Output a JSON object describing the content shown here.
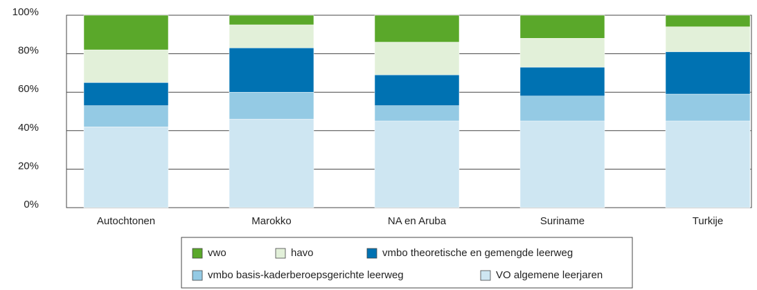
{
  "chart_data": {
    "type": "stacked_bar",
    "categories": [
      "Autochtonen",
      "Marokko",
      "NA en Aruba",
      "Suriname",
      "Turkije"
    ],
    "series": [
      {
        "name": "vwo",
        "color": "#5aa82a",
        "values": [
          18,
          5,
          14,
          12,
          6
        ]
      },
      {
        "name": "havo",
        "color": "#e2f0d9",
        "values": [
          17,
          12,
          17,
          15,
          13
        ]
      },
      {
        "name": "vmbo theoretische en gemengde  leerweg",
        "color": "#0072b2",
        "values": [
          12,
          23,
          16,
          15,
          22
        ]
      },
      {
        "name": "vmbo basis-kaderberoepsgerichte leerweg",
        "color": "#94cae4",
        "values": [
          11,
          14,
          8,
          13,
          14
        ]
      },
      {
        "name": "VO algemene leerjaren",
        "color": "#cee6f2",
        "values": [
          42,
          46,
          45,
          45,
          45
        ]
      }
    ],
    "ylim": [
      0,
      100
    ],
    "yticks": [
      {
        "value": 0,
        "label": "0%"
      },
      {
        "value": 20,
        "label": "20%"
      },
      {
        "value": 40,
        "label": "40%"
      },
      {
        "value": 60,
        "label": "60%"
      },
      {
        "value": 80,
        "label": "80%"
      },
      {
        "value": 100,
        "label": "100%"
      }
    ],
    "grid": true,
    "legend": "bottom"
  }
}
